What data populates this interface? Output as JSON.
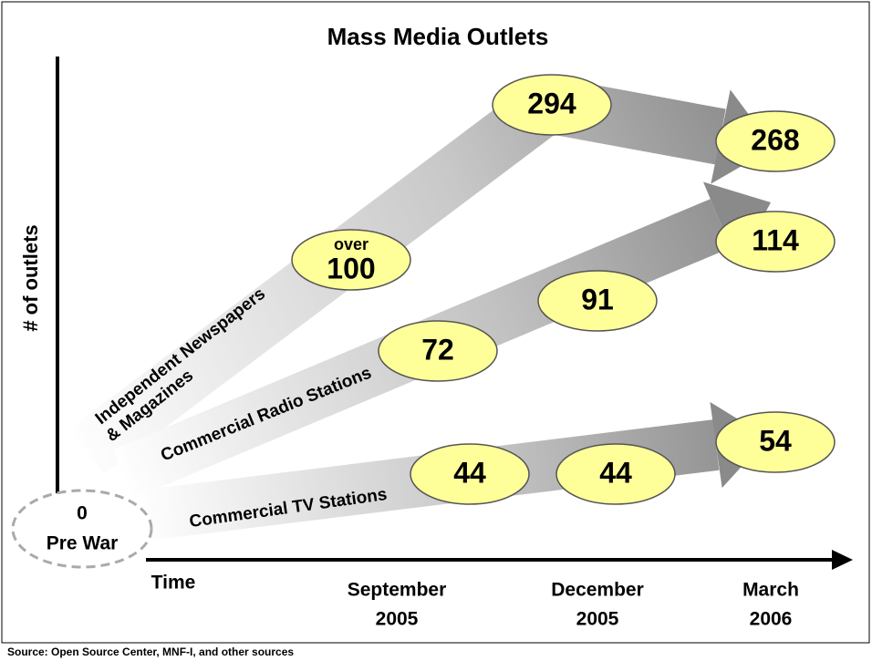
{
  "title": "Mass Media Outlets",
  "y_axis_label": "# of outlets",
  "x_axis": {
    "label": "Time",
    "periods": [
      {
        "month": "September",
        "year": "2005"
      },
      {
        "month": "December",
        "year": "2005"
      },
      {
        "month": "March",
        "year": "2006"
      }
    ]
  },
  "origin": {
    "value": 0,
    "label": "Pre War"
  },
  "series": [
    {
      "name_lines": [
        "Independent Newspapers",
        "& Magazines"
      ],
      "points": [
        {
          "prefix": "over",
          "value": 100
        },
        {
          "value": 294
        },
        {
          "value": 268
        }
      ]
    },
    {
      "name_lines": [
        "Commercial Radio Stations"
      ],
      "points": [
        {
          "value": 72
        },
        {
          "value": 91
        },
        {
          "value": 114
        }
      ]
    },
    {
      "name_lines": [
        "Commercial TV Stations"
      ],
      "points": [
        {
          "value": 44
        },
        {
          "value": 44
        },
        {
          "value": 54
        }
      ]
    }
  ],
  "source": "Source:  Open Source Center, MNF-I, and other sources"
}
